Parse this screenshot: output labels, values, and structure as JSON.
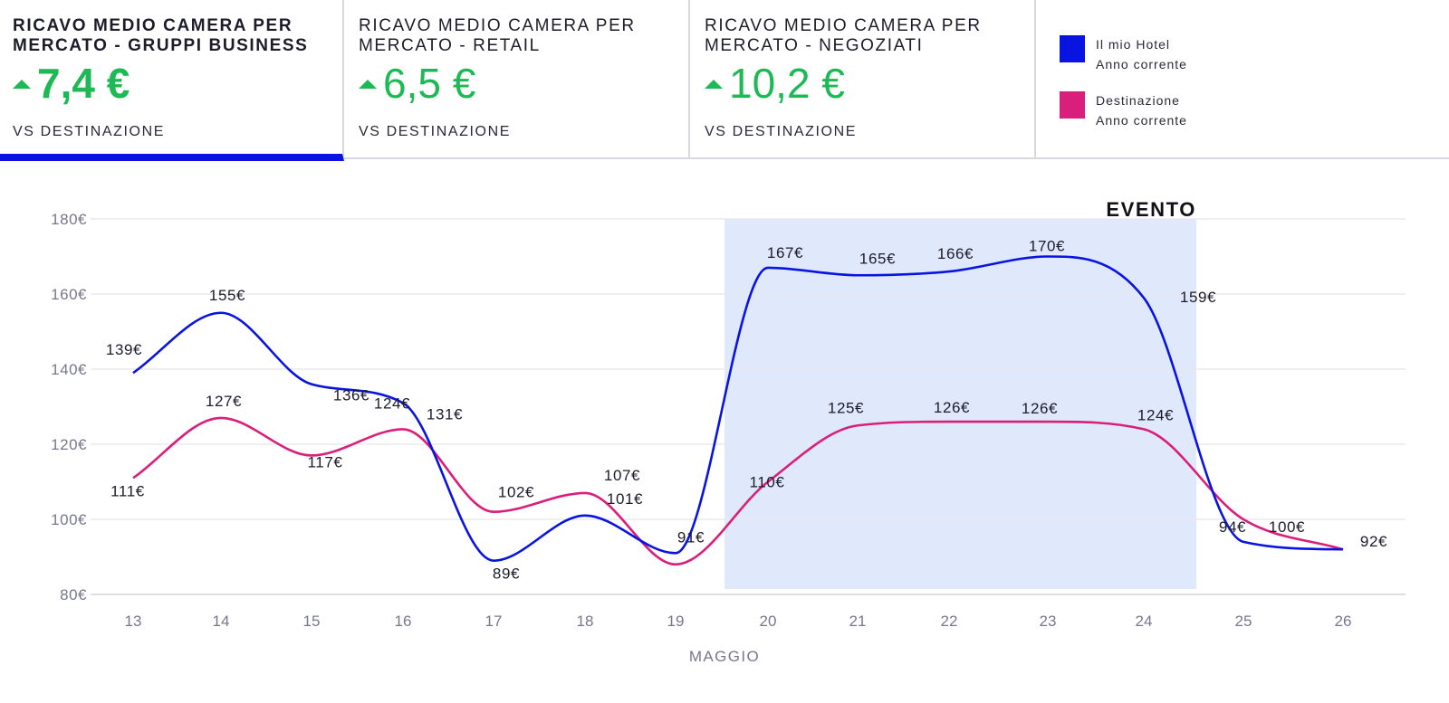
{
  "kpis": [
    {
      "title": "RICAVO MEDIO CAMERA PER MERCATO - GRUPPI BUSINESS",
      "value": "7,4 €",
      "subtitle": "VS DESTINAZIONE",
      "trend": "up"
    },
    {
      "title": "RICAVO MEDIO CAMERA PER MERCATO - RETAIL",
      "value": "6,5 €",
      "subtitle": "VS DESTINAZIONE",
      "trend": "up"
    },
    {
      "title": "RICAVO MEDIO CAMERA PER MERCATO - NEGOZIATI",
      "value": "10,2 €",
      "subtitle": "VS DESTINAZIONE",
      "trend": "up"
    }
  ],
  "legend": [
    {
      "line1": "Il mio Hotel",
      "line2": "Anno corrente",
      "color": "#0a14e0"
    },
    {
      "line1": "Destinazione",
      "line2": "Anno corrente",
      "color": "#d91f7c"
    }
  ],
  "colors": {
    "positive": "#1db954",
    "active_tab": "#0a14e0",
    "event_band": "#dfe9fb"
  },
  "chart_data": {
    "type": "line",
    "x": [
      "13",
      "14",
      "15",
      "16",
      "17",
      "18",
      "19",
      "20",
      "21",
      "22",
      "23",
      "24",
      "25",
      "26"
    ],
    "xlabel": "MAGGIO",
    "ylabel": "",
    "ylim": [
      80,
      180
    ],
    "yticks": [
      "80€",
      "100€",
      "120€",
      "140€",
      "160€",
      "180€"
    ],
    "grid": true,
    "series": [
      {
        "name": "Il mio Hotel Anno corrente",
        "color": "#0a14e0",
        "values": [
          139,
          155,
          136,
          131,
          89,
          101,
          91,
          167,
          165,
          166,
          170,
          159,
          94,
          92
        ],
        "labels": [
          "139€",
          "155€",
          "136€",
          "131€",
          "89€",
          "101€",
          "91€",
          "167€",
          "165€",
          "166€",
          "170€",
          "159€",
          "94€",
          ""
        ]
      },
      {
        "name": "Destinazione Anno corrente",
        "color": "#d91f7c",
        "values": [
          111,
          127,
          117,
          124,
          102,
          107,
          88,
          110,
          125,
          126,
          126,
          124,
          100,
          92
        ],
        "labels": [
          "111€",
          "127€",
          "117€",
          "124€",
          "102€",
          "107€",
          "",
          "110€",
          "125€",
          "126€",
          "126€",
          "124€",
          "100€",
          "92€"
        ]
      }
    ],
    "annotations": [
      {
        "text": "EVENTO",
        "x_from": "20",
        "x_to": "24"
      }
    ]
  }
}
